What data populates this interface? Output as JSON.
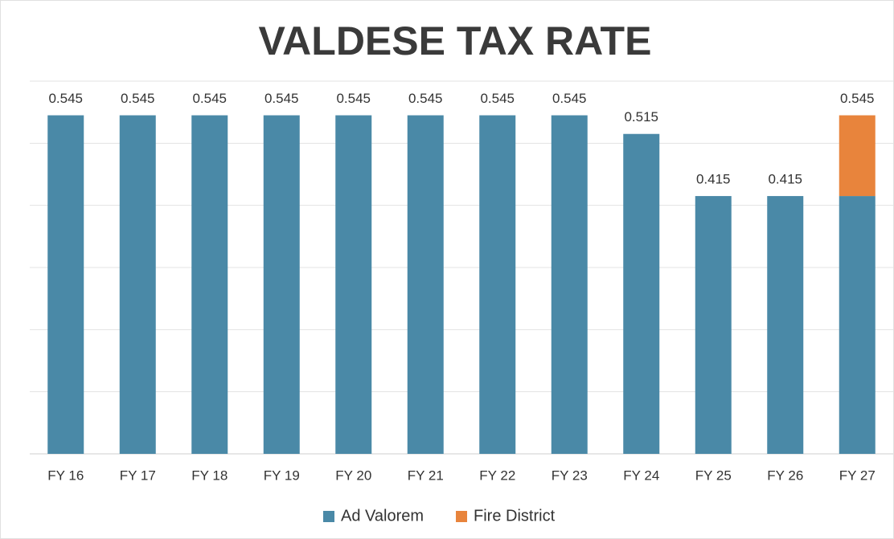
{
  "chart_data": {
    "type": "stacked_bar",
    "title": "VALDESE TAX RATE",
    "categories": [
      "FY 16",
      "FY 17",
      "FY 18",
      "FY 19",
      "FY 20",
      "FY 21",
      "FY 22",
      "FY 23",
      "FY 24",
      "FY 25",
      "FY 26",
      "FY 27"
    ],
    "series": [
      {
        "name": "Ad Valorem",
        "color": "#4a89a7",
        "values": [
          0.545,
          0.545,
          0.545,
          0.545,
          0.545,
          0.545,
          0.545,
          0.545,
          0.515,
          0.415,
          0.415,
          0.415
        ]
      },
      {
        "name": "Fire District",
        "color": "#e8843c",
        "values": [
          null,
          null,
          null,
          null,
          null,
          null,
          null,
          null,
          null,
          null,
          null,
          0.13
        ]
      }
    ],
    "total_labels": [
      "0.545",
      "0.545",
      "0.545",
      "0.545",
      "0.545",
      "0.545",
      "0.545",
      "0.545",
      "0.515",
      "0.415",
      "0.415",
      "0.545"
    ],
    "ylim": [
      0,
      0.6
    ],
    "yticks": [
      0,
      0.1,
      0.2,
      0.3,
      0.4,
      0.5,
      0.6
    ],
    "grid": true,
    "legend": "bottom"
  }
}
